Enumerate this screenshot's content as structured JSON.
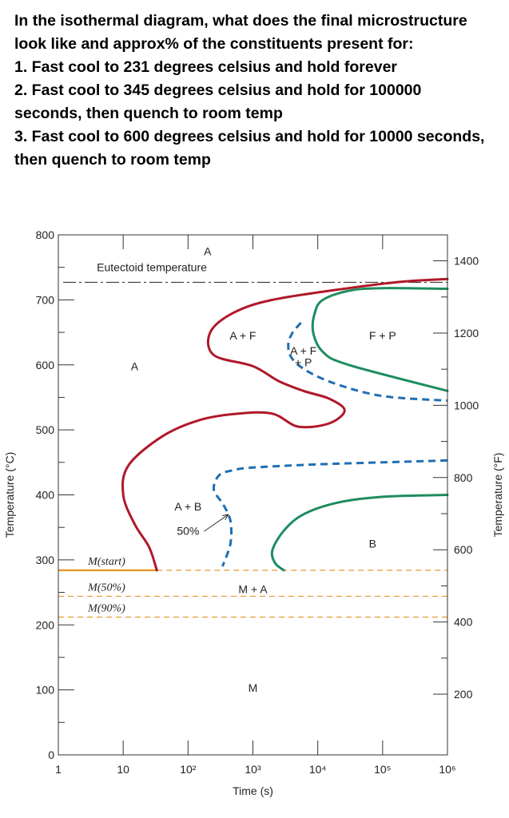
{
  "question": {
    "lines": [
      "In the isothermal diagram, what does the final microstructure",
      "look like and approx% of the constituents present for:",
      "1. Fast cool to 231 degrees celsius and hold forever",
      "2. Fast cool to 345 degrees celsius and hold for 100000",
      "seconds, then quench to room temp",
      "3. Fast cool to 600 degrees celsius and hold for 10000 seconds,",
      "then quench to room temp"
    ]
  },
  "chart_data": {
    "type": "line",
    "title": "",
    "xlabel": "Time (s)",
    "ylabel": "Temperature (°C)",
    "ylabel_right": "Temperature (°F)",
    "xscale": "log",
    "xlim": [
      1,
      1000000
    ],
    "ylim": [
      0,
      800
    ],
    "x_tick_labels": [
      "1",
      "10",
      "10²",
      "10³",
      "10⁴",
      "10⁵",
      "10⁶"
    ],
    "y_ticks": [
      0,
      100,
      200,
      300,
      400,
      500,
      600,
      700,
      800
    ],
    "y_tick_labels": [
      "0",
      "100",
      "200",
      "300",
      "400",
      "500",
      "600",
      "700",
      "800"
    ],
    "y_ticks_right_F": [
      200,
      400,
      600,
      800,
      1000,
      1200,
      1400
    ],
    "grid": false,
    "eutectoid": {
      "label": "Eutectoid temperature",
      "value": 727
    },
    "martensite_lines": [
      {
        "label": "M(start)",
        "temperature": 284,
        "color": "#E69A2E"
      },
      {
        "label": "M(50%)",
        "temperature": 244,
        "color": "#E69A2E"
      },
      {
        "label": "M(90%)",
        "temperature": 212,
        "color": "#E69A2E"
      }
    ],
    "regions": [
      {
        "label": "A",
        "x": 200,
        "y": 775
      },
      {
        "label": "A",
        "x": 15,
        "y": 598
      },
      {
        "label": "A + F",
        "x": 700,
        "y": 645
      },
      {
        "label": "A + F",
        "x": 6000,
        "y": 622
      },
      {
        "label": "+ P",
        "x": 6000,
        "y": 604
      },
      {
        "label": "F + P",
        "x": 100000,
        "y": 645
      },
      {
        "label": "A + B",
        "x": 100,
        "y": 382
      },
      {
        "label": "50%",
        "x": 100,
        "y": 345
      },
      {
        "label": "M + A",
        "x": 1000,
        "y": 255
      },
      {
        "label": "B",
        "x": 70000,
        "y": 325
      },
      {
        "label": "M",
        "x": 1000,
        "y": 103
      }
    ],
    "series": [
      {
        "color": "#B0182A",
        "style": "solid",
        "points": [
          [
            1000000,
            732
          ],
          [
            200000,
            728
          ],
          [
            30000,
            718
          ],
          [
            2000,
            700
          ],
          [
            500,
            680
          ],
          [
            220,
            650
          ],
          [
            250,
            615
          ],
          [
            1000,
            598
          ],
          [
            2500,
            575
          ],
          [
            6000,
            560
          ],
          [
            15000,
            548
          ],
          [
            26000,
            530
          ],
          [
            15000,
            510
          ],
          [
            5000,
            505
          ],
          [
            2000,
            525
          ],
          [
            600,
            525
          ],
          [
            150,
            515
          ],
          [
            40,
            490
          ],
          [
            12,
            445
          ],
          [
            10,
            400
          ],
          [
            15,
            355
          ],
          [
            25,
            320
          ],
          [
            33,
            284
          ]
        ]
      },
      {
        "color": "#1F6EB3",
        "style": "dashed",
        "points": [
          [
            5500,
            665
          ],
          [
            4000,
            648
          ],
          [
            3500,
            630
          ],
          [
            4000,
            610
          ],
          [
            7000,
            590
          ],
          [
            20000,
            570
          ],
          [
            100000,
            552
          ],
          [
            1000000,
            545
          ]
        ]
      },
      {
        "color": "#1F6EB3",
        "style": "dashed",
        "points": [
          [
            1000000,
            453
          ],
          [
            100000,
            450
          ],
          [
            10000,
            447
          ],
          [
            1000,
            442
          ],
          [
            500,
            438
          ],
          [
            300,
            430
          ],
          [
            250,
            408
          ],
          [
            350,
            385
          ],
          [
            450,
            360
          ],
          [
            450,
            325
          ],
          [
            340,
            290
          ]
        ]
      },
      {
        "color": "#1E8C5E",
        "style": "solid",
        "points": [
          [
            1000000,
            717
          ],
          [
            100000,
            718
          ],
          [
            30000,
            714
          ],
          [
            12000,
            700
          ],
          [
            9000,
            680
          ],
          [
            8500,
            650
          ],
          [
            12000,
            620
          ],
          [
            30000,
            600
          ],
          [
            1000000,
            560
          ]
        ]
      },
      {
        "color": "#1E8C5E",
        "style": "solid",
        "points": [
          [
            1000000,
            400
          ],
          [
            100000,
            397
          ],
          [
            20000,
            388
          ],
          [
            6000,
            370
          ],
          [
            3000,
            345
          ],
          [
            2000,
            315
          ],
          [
            2200,
            295
          ],
          [
            3000,
            284
          ]
        ]
      }
    ]
  }
}
